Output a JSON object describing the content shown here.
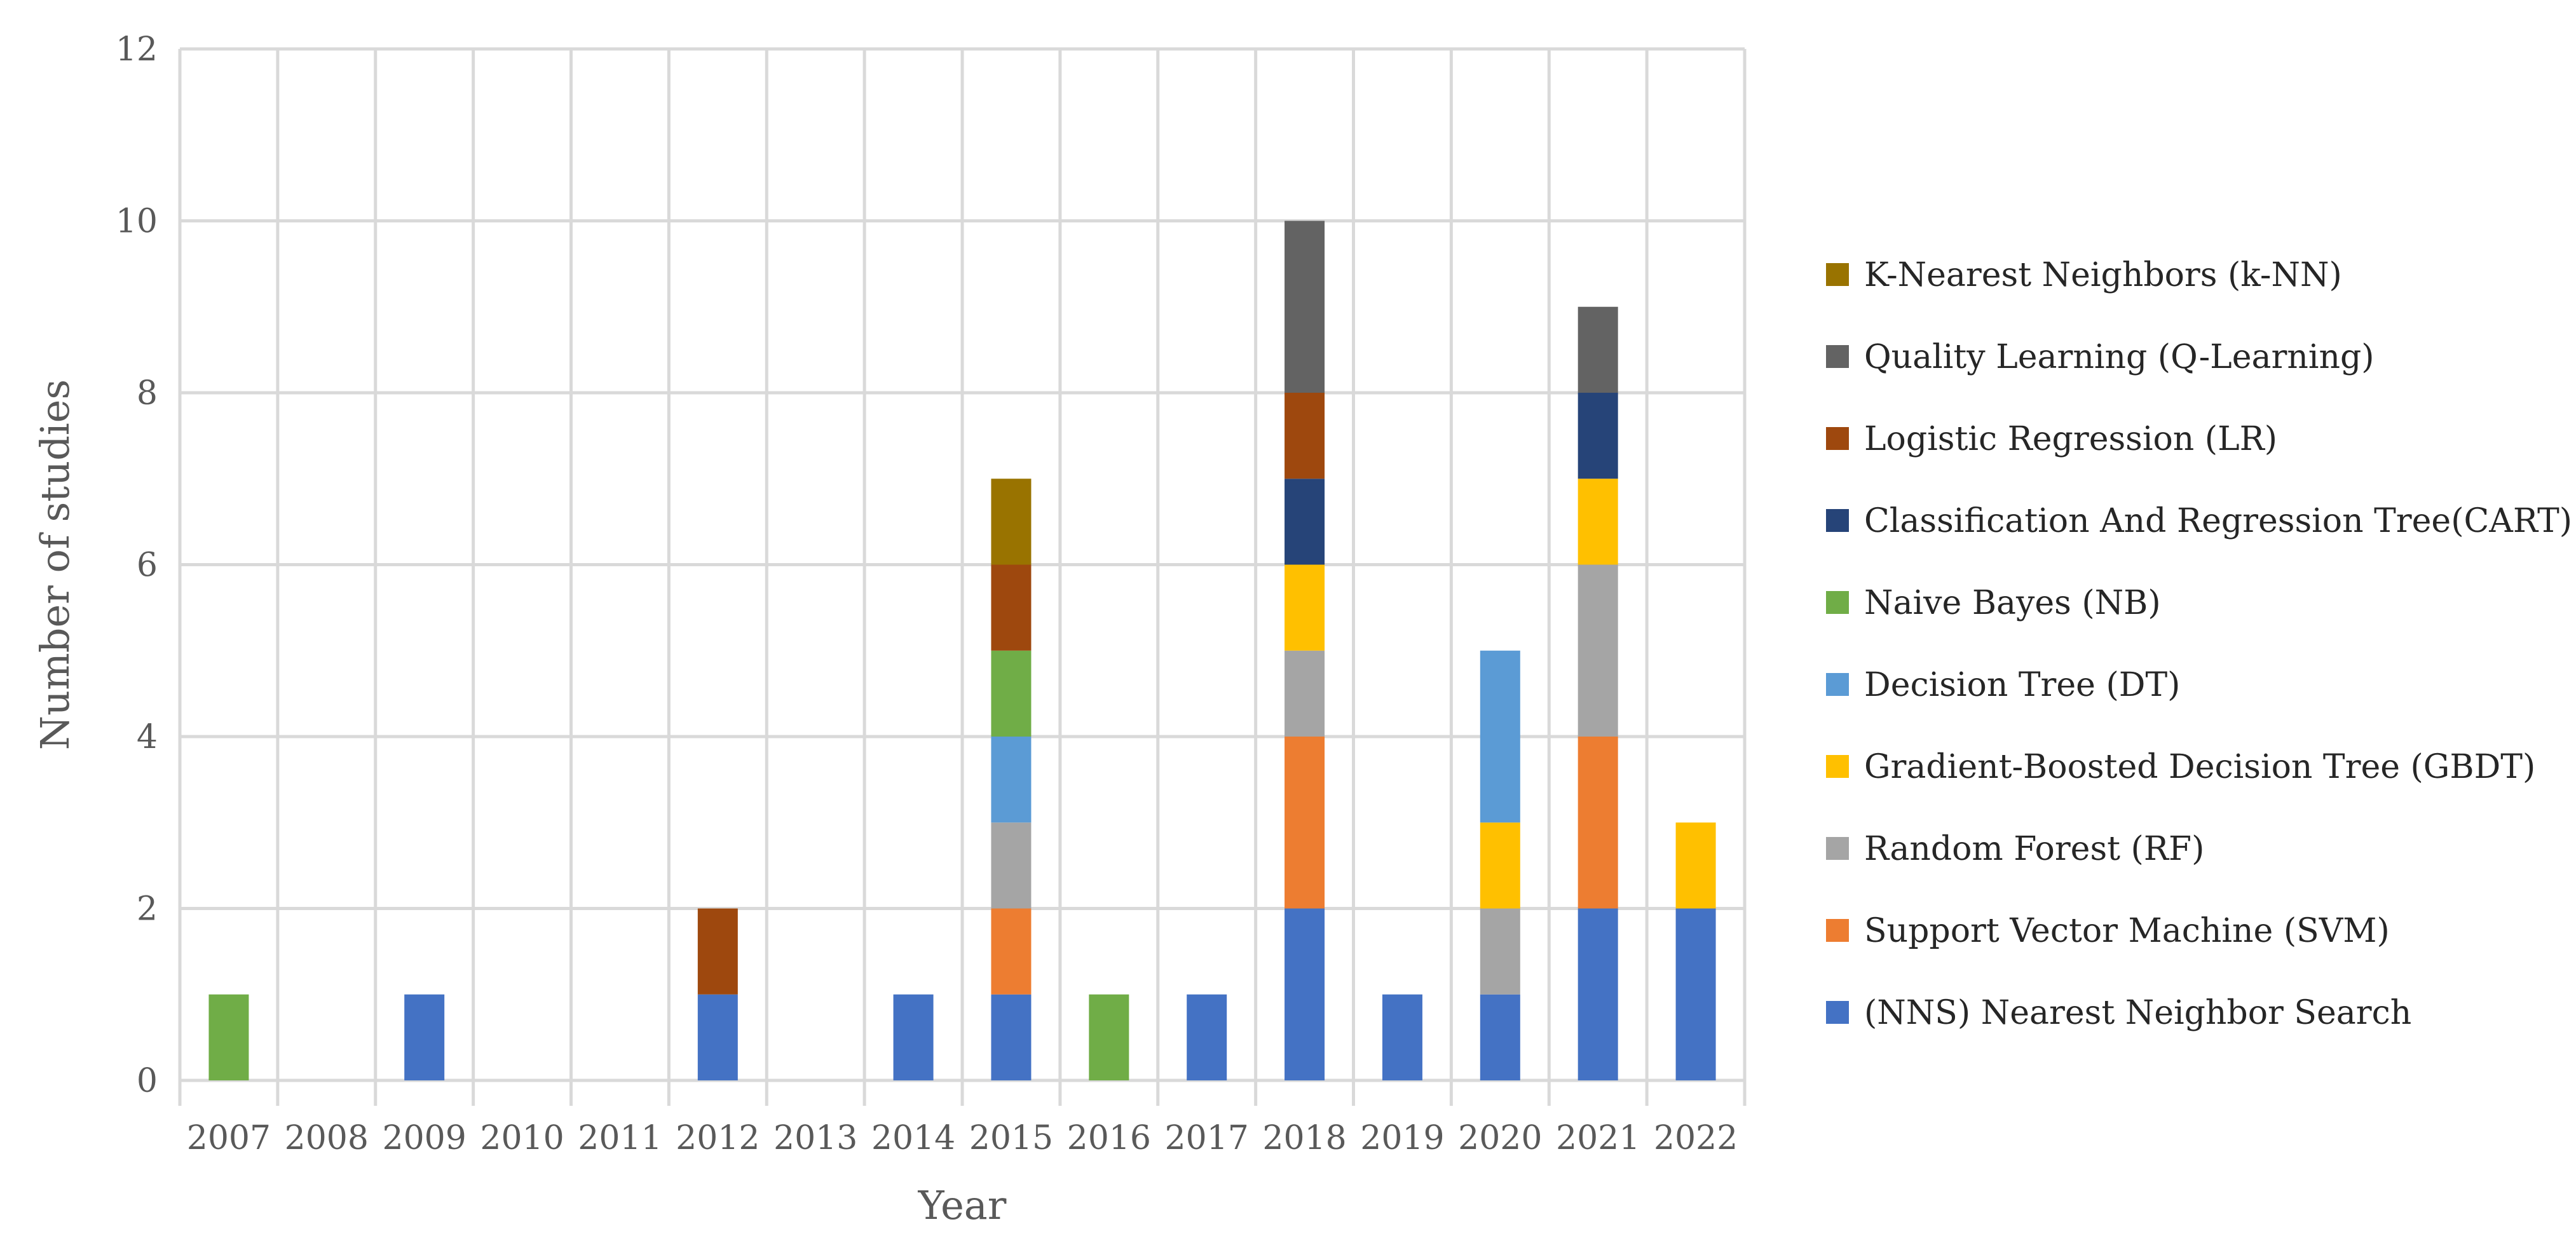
{
  "chart_data": {
    "type": "bar",
    "stacked": true,
    "title": "",
    "xlabel": "Year",
    "ylabel": "Number of studies",
    "ylim": [
      0,
      12
    ],
    "yticks": [
      0,
      2,
      4,
      6,
      8,
      10,
      12
    ],
    "grid": true,
    "legend_position": "right",
    "categories": [
      "2007",
      "2008",
      "2009",
      "2010",
      "2011",
      "2012",
      "2013",
      "2014",
      "2015",
      "2016",
      "2017",
      "2018",
      "2019",
      "2020",
      "2021",
      "2022"
    ],
    "series": [
      {
        "name": "(NNS) Nearest Neighbor Search",
        "color": "#4472C4",
        "values": [
          0,
          0,
          1,
          0,
          0,
          1,
          0,
          1,
          1,
          0,
          1,
          2,
          1,
          1,
          2,
          2
        ]
      },
      {
        "name": "Support Vector Machine (SVM)",
        "color": "#ED7D31",
        "values": [
          0,
          0,
          0,
          0,
          0,
          0,
          0,
          0,
          1,
          0,
          0,
          2,
          0,
          0,
          2,
          0
        ]
      },
      {
        "name": "Random Forest (RF)",
        "color": "#A5A5A5",
        "values": [
          0,
          0,
          0,
          0,
          0,
          0,
          0,
          0,
          1,
          0,
          0,
          1,
          0,
          1,
          2,
          0
        ]
      },
      {
        "name": "Gradient-Boosted Decision Tree (GBDT)",
        "color": "#FFC000",
        "values": [
          0,
          0,
          0,
          0,
          0,
          0,
          0,
          0,
          0,
          0,
          0,
          1,
          0,
          1,
          1,
          1
        ]
      },
      {
        "name": "Decision Tree (DT)",
        "color": "#5B9BD5",
        "values": [
          0,
          0,
          0,
          0,
          0,
          0,
          0,
          0,
          1,
          0,
          0,
          0,
          0,
          2,
          0,
          0
        ]
      },
      {
        "name": "Naive Bayes (NB)",
        "color": "#70AD47",
        "values": [
          1,
          0,
          0,
          0,
          0,
          0,
          0,
          0,
          1,
          1,
          0,
          0,
          0,
          0,
          0,
          0
        ]
      },
      {
        "name": "Classification And Regression Tree(CART)",
        "color": "#264478",
        "values": [
          0,
          0,
          0,
          0,
          0,
          0,
          0,
          0,
          0,
          0,
          0,
          1,
          0,
          0,
          1,
          0
        ]
      },
      {
        "name": "Logistic Regression (LR)",
        "color": "#9E480E",
        "values": [
          0,
          0,
          0,
          0,
          0,
          1,
          0,
          0,
          1,
          0,
          0,
          1,
          0,
          0,
          0,
          0
        ]
      },
      {
        "name": "Quality Learning (Q-Learning)",
        "color": "#636363",
        "values": [
          0,
          0,
          0,
          0,
          0,
          0,
          0,
          0,
          0,
          0,
          0,
          2,
          0,
          0,
          1,
          0
        ]
      },
      {
        "name": "K-Nearest Neighbors (k-NN)",
        "color": "#997300",
        "values": [
          0,
          0,
          0,
          0,
          0,
          0,
          0,
          0,
          1,
          0,
          0,
          0,
          0,
          0,
          0,
          0
        ]
      }
    ]
  }
}
